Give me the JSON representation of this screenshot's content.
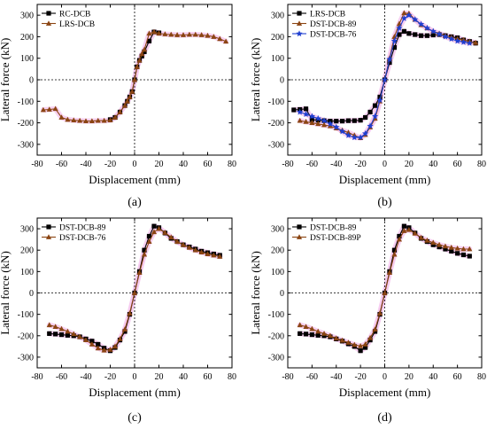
{
  "chart_data": [
    {
      "type": "line",
      "panel_label": "(a)",
      "xlabel": "Displacement (mm)",
      "ylabel": "Lateral force (kN)",
      "xlim": [
        -80,
        80
      ],
      "ylim": [
        -350,
        350
      ],
      "xticks": [
        -80,
        -60,
        -40,
        -20,
        0,
        20,
        40,
        60,
        80
      ],
      "yticks": [
        -300,
        -200,
        -100,
        0,
        100,
        200,
        300
      ],
      "grid": false,
      "legend_position": "top-left",
      "zero_lines": "dotted",
      "series": [
        {
          "name": "RC-DCB",
          "color": "#000000",
          "marker": "square",
          "x": [
            -20,
            -16,
            -12,
            -8,
            -6,
            -4,
            -2,
            0,
            2,
            4,
            6,
            8,
            12,
            16,
            20
          ],
          "y": [
            -185,
            -175,
            -150,
            -120,
            -100,
            -80,
            -55,
            0,
            60,
            90,
            110,
            130,
            180,
            222,
            218
          ]
        },
        {
          "name": "LRS-DCB",
          "color": "#8B4513",
          "marker": "triangle",
          "x": [
            -75,
            -70,
            -65,
            -60,
            -55,
            -50,
            -45,
            -40,
            -35,
            -30,
            -25,
            -20,
            -16,
            -12,
            -8,
            -6,
            -4,
            -2,
            0,
            2,
            4,
            6,
            8,
            12,
            16,
            20,
            25,
            30,
            35,
            40,
            45,
            50,
            55,
            60,
            65,
            70,
            75
          ],
          "y": [
            -140,
            -138,
            -135,
            -175,
            -185,
            -188,
            -190,
            -192,
            -192,
            -190,
            -190,
            -188,
            -175,
            -150,
            -120,
            -100,
            -80,
            -55,
            0,
            60,
            90,
            120,
            140,
            215,
            222,
            215,
            212,
            210,
            208,
            208,
            210,
            210,
            208,
            205,
            200,
            190,
            178
          ]
        }
      ]
    },
    {
      "type": "line",
      "panel_label": "(b)",
      "xlabel": "Displacement (mm)",
      "ylabel": "Lateral force (kN)",
      "xlim": [
        -80,
        80
      ],
      "ylim": [
        -350,
        350
      ],
      "xticks": [
        -80,
        -60,
        -40,
        -20,
        0,
        20,
        40,
        60,
        80
      ],
      "yticks": [
        -300,
        -200,
        -100,
        0,
        100,
        200,
        300
      ],
      "grid": false,
      "legend_position": "top-left",
      "zero_lines": "dotted",
      "series": [
        {
          "name": "LRS-DCB",
          "color": "#000000",
          "marker": "square",
          "x": [
            -75,
            -70,
            -65,
            -60,
            -55,
            -50,
            -45,
            -40,
            -35,
            -30,
            -25,
            -20,
            -16,
            -12,
            -8,
            -4,
            0,
            4,
            8,
            12,
            16,
            20,
            25,
            30,
            35,
            40,
            45,
            50,
            55,
            60,
            65,
            70,
            75
          ],
          "y": [
            -140,
            -138,
            -135,
            -185,
            -188,
            -190,
            -192,
            -192,
            -192,
            -190,
            -190,
            -188,
            -175,
            -150,
            -120,
            -80,
            0,
            80,
            150,
            210,
            225,
            215,
            210,
            205,
            205,
            208,
            210,
            205,
            200,
            195,
            185,
            178,
            170
          ]
        },
        {
          "name": "DST-DCB-89",
          "color": "#8B4513",
          "marker": "triangle",
          "x": [
            -70,
            -65,
            -60,
            -55,
            -50,
            -45,
            -40,
            -35,
            -30,
            -25,
            -20,
            -16,
            -12,
            -8,
            -4,
            0,
            4,
            8,
            12,
            16,
            20,
            25,
            30,
            35,
            40,
            45,
            50,
            55,
            60,
            65,
            70,
            75
          ],
          "y": [
            -190,
            -195,
            -200,
            -205,
            -210,
            -215,
            -225,
            -235,
            -245,
            -258,
            -270,
            -255,
            -220,
            -180,
            -100,
            0,
            100,
            200,
            260,
            310,
            308,
            280,
            255,
            240,
            225,
            215,
            205,
            198,
            190,
            185,
            178,
            172
          ]
        },
        {
          "name": "DST-DCB-76",
          "color": "#1f3fd0",
          "marker": "star",
          "x": [
            -70,
            -65,
            -60,
            -55,
            -50,
            -45,
            -40,
            -35,
            -30,
            -25,
            -20,
            -16,
            -12,
            -8,
            -4,
            0,
            4,
            8,
            12,
            16,
            20,
            25,
            30,
            35,
            40,
            45,
            50,
            55,
            60,
            65,
            70
          ],
          "y": [
            -150,
            -160,
            -170,
            -180,
            -190,
            -205,
            -220,
            -240,
            -258,
            -268,
            -268,
            -250,
            -215,
            -170,
            -95,
            0,
            95,
            180,
            240,
            285,
            300,
            280,
            258,
            240,
            225,
            212,
            200,
            190,
            180,
            175,
            170
          ]
        }
      ]
    },
    {
      "type": "line",
      "panel_label": "(c)",
      "xlabel": "Displacement (mm)",
      "ylabel": "Lateral force (kN)",
      "xlim": [
        -80,
        80
      ],
      "ylim": [
        -350,
        350
      ],
      "xticks": [
        -80,
        -60,
        -40,
        -20,
        0,
        20,
        40,
        60,
        80
      ],
      "yticks": [
        -300,
        -200,
        -100,
        0,
        100,
        200,
        300
      ],
      "grid": false,
      "legend_position": "top-left",
      "zero_lines": "dotted",
      "series": [
        {
          "name": "DST-DCB-89",
          "color": "#000000",
          "marker": "square",
          "x": [
            -70,
            -65,
            -60,
            -55,
            -50,
            -45,
            -40,
            -35,
            -30,
            -25,
            -20,
            -16,
            -12,
            -8,
            -4,
            0,
            4,
            8,
            12,
            16,
            20,
            25,
            30,
            35,
            40,
            45,
            50,
            55,
            60,
            65,
            70
          ],
          "y": [
            -190,
            -192,
            -195,
            -198,
            -200,
            -205,
            -215,
            -225,
            -240,
            -258,
            -270,
            -255,
            -220,
            -180,
            -100,
            0,
            100,
            200,
            265,
            312,
            305,
            280,
            255,
            240,
            225,
            215,
            205,
            195,
            188,
            182,
            176
          ]
        },
        {
          "name": "DST-DCB-76",
          "color": "#8B4513",
          "marker": "triangle",
          "x": [
            -70,
            -65,
            -60,
            -55,
            -50,
            -45,
            -40,
            -35,
            -30,
            -25,
            -20,
            -16,
            -12,
            -8,
            -4,
            0,
            4,
            8,
            12,
            16,
            20,
            25,
            30,
            35,
            40,
            45,
            50,
            55,
            60,
            65,
            70
          ],
          "y": [
            -150,
            -158,
            -168,
            -180,
            -192,
            -205,
            -220,
            -240,
            -258,
            -268,
            -265,
            -250,
            -215,
            -170,
            -95,
            0,
            95,
            180,
            240,
            285,
            300,
            282,
            260,
            240,
            225,
            212,
            200,
            190,
            182,
            176,
            170
          ]
        }
      ]
    },
    {
      "type": "line",
      "panel_label": "(d)",
      "xlabel": "Displacement (mm)",
      "ylabel": "Lateral force (kN)",
      "xlim": [
        -80,
        80
      ],
      "ylim": [
        -350,
        350
      ],
      "xticks": [
        -80,
        -60,
        -40,
        -20,
        0,
        20,
        40,
        60,
        80
      ],
      "yticks": [
        -300,
        -200,
        -100,
        0,
        100,
        200,
        300
      ],
      "grid": false,
      "legend_position": "top-left",
      "zero_lines": "dotted",
      "series": [
        {
          "name": "DST-DCB-89",
          "color": "#000000",
          "marker": "square",
          "x": [
            -70,
            -65,
            -60,
            -55,
            -50,
            -45,
            -40,
            -35,
            -30,
            -25,
            -20,
            -16,
            -12,
            -8,
            -4,
            0,
            4,
            8,
            12,
            16,
            20,
            25,
            30,
            35,
            40,
            45,
            50,
            55,
            60,
            65,
            70
          ],
          "y": [
            -190,
            -192,
            -195,
            -198,
            -200,
            -205,
            -215,
            -225,
            -238,
            -250,
            -270,
            -255,
            -220,
            -180,
            -100,
            0,
            100,
            200,
            265,
            312,
            305,
            280,
            255,
            240,
            225,
            215,
            205,
            195,
            185,
            178,
            172
          ]
        },
        {
          "name": "DST-DCB-89P",
          "color": "#8B4513",
          "marker": "triangle",
          "x": [
            -70,
            -65,
            -60,
            -55,
            -50,
            -45,
            -40,
            -35,
            -30,
            -25,
            -20,
            -16,
            -12,
            -8,
            -4,
            0,
            4,
            8,
            12,
            16,
            20,
            25,
            30,
            35,
            40,
            45,
            50,
            55,
            60,
            65,
            70
          ],
          "y": [
            -150,
            -158,
            -168,
            -180,
            -190,
            -200,
            -212,
            -222,
            -232,
            -242,
            -248,
            -240,
            -210,
            -170,
            -95,
            0,
            95,
            180,
            250,
            290,
            295,
            278,
            258,
            245,
            235,
            225,
            218,
            212,
            208,
            205,
            205
          ]
        }
      ]
    }
  ]
}
